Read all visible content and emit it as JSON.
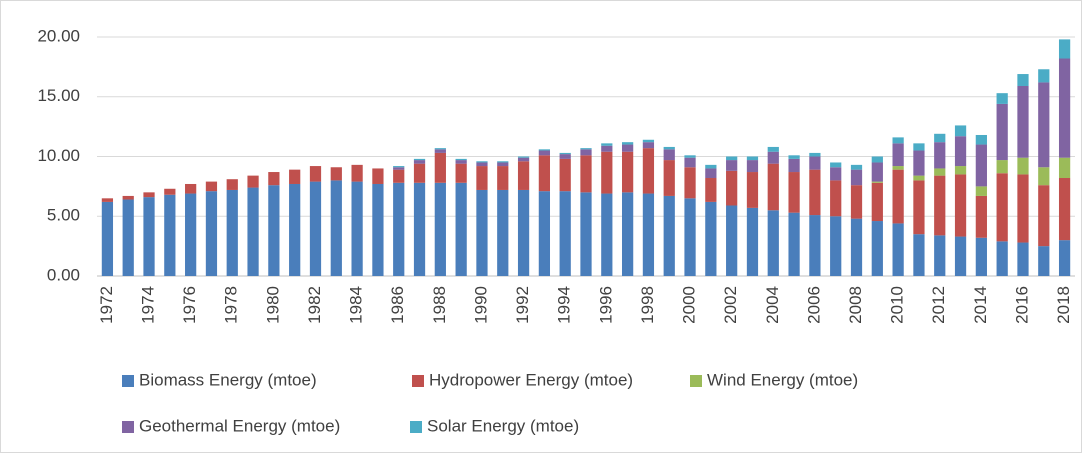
{
  "chart_data": {
    "type": "stacked-bar",
    "categories": [
      "1972",
      null,
      "1974",
      null,
      "1976",
      null,
      "1978",
      null,
      "1980",
      null,
      "1982",
      null,
      "1984",
      null,
      "1986",
      null,
      "1988",
      null,
      "1990",
      null,
      "1992",
      null,
      "1994",
      null,
      "1996",
      null,
      "1998",
      null,
      "2000",
      null,
      "2002",
      null,
      "2004",
      null,
      "2006",
      null,
      "2008",
      null,
      "2010",
      null,
      "2012",
      null,
      "2014",
      null,
      "2016",
      null,
      "2018"
    ],
    "series": [
      {
        "name": "Biomass Energy (mtoe)",
        "color": "#4a7ebb",
        "values": [
          6.2,
          6.4,
          6.6,
          6.8,
          6.9,
          7.1,
          7.2,
          7.4,
          7.6,
          7.7,
          7.9,
          8.0,
          7.9,
          7.7,
          7.8,
          7.8,
          7.8,
          7.8,
          7.2,
          7.2,
          7.2,
          7.1,
          7.1,
          7.0,
          6.9,
          7.0,
          6.9,
          6.7,
          6.5,
          6.2,
          5.9,
          5.7,
          5.5,
          5.3,
          5.1,
          5.0,
          4.8,
          4.6,
          4.4,
          3.5,
          3.4,
          3.3,
          3.2,
          2.9,
          2.8,
          2.5,
          3.0
        ]
      },
      {
        "name": "Hydropower Energy (mtoe)",
        "color": "#c0504d",
        "values": [
          0.3,
          0.3,
          0.4,
          0.5,
          0.8,
          0.8,
          0.9,
          1.0,
          1.1,
          1.2,
          1.3,
          1.1,
          1.4,
          1.3,
          1.1,
          1.6,
          2.5,
          1.6,
          2.0,
          2.0,
          2.4,
          3.0,
          2.7,
          3.1,
          3.5,
          3.4,
          3.8,
          3.0,
          2.6,
          2.0,
          2.9,
          3.0,
          3.9,
          3.4,
          3.8,
          3.0,
          2.8,
          3.2,
          4.5,
          4.5,
          5.0,
          5.2,
          3.5,
          5.7,
          5.7,
          5.1,
          5.2
        ]
      },
      {
        "name": "Wind Energy (mtoe)",
        "color": "#9bbb59",
        "values": [
          0,
          0,
          0,
          0,
          0,
          0,
          0,
          0,
          0,
          0,
          0,
          0,
          0,
          0,
          0,
          0,
          0,
          0,
          0,
          0,
          0,
          0,
          0,
          0,
          0,
          0,
          0,
          0,
          0,
          0,
          0,
          0,
          0,
          0,
          0,
          0,
          0,
          0.1,
          0.3,
          0.4,
          0.6,
          0.7,
          0.8,
          1.1,
          1.4,
          1.5,
          1.7
        ]
      },
      {
        "name": "Geothermal Energy (mtoe)",
        "color": "#8064a2",
        "values": [
          0,
          0,
          0,
          0,
          0,
          0,
          0,
          0,
          0,
          0,
          0,
          0,
          0,
          0,
          0.2,
          0.3,
          0.3,
          0.3,
          0.3,
          0.3,
          0.3,
          0.4,
          0.4,
          0.5,
          0.5,
          0.6,
          0.5,
          0.9,
          0.8,
          0.8,
          0.9,
          1.0,
          1.0,
          1.1,
          1.1,
          1.1,
          1.3,
          1.6,
          1.9,
          2.1,
          2.2,
          2.5,
          3.5,
          4.7,
          6.0,
          7.1,
          8.3
        ]
      },
      {
        "name": "Solar Energy (mtoe)",
        "color": "#4bacc6",
        "values": [
          0,
          0,
          0,
          0,
          0,
          0,
          0,
          0,
          0,
          0,
          0,
          0,
          0,
          0,
          0.1,
          0.1,
          0.1,
          0.1,
          0.1,
          0.1,
          0.1,
          0.1,
          0.1,
          0.1,
          0.2,
          0.2,
          0.2,
          0.2,
          0.2,
          0.3,
          0.3,
          0.3,
          0.4,
          0.3,
          0.3,
          0.4,
          0.4,
          0.5,
          0.5,
          0.6,
          0.7,
          0.9,
          0.8,
          0.9,
          1.0,
          1.1,
          1.6
        ]
      }
    ],
    "ylim": [
      0,
      20
    ],
    "yticks": [
      {
        "value": 0,
        "label": "0.00"
      },
      {
        "value": 5,
        "label": "5.00"
      },
      {
        "value": 10,
        "label": "10.00"
      },
      {
        "value": 15,
        "label": "15.00"
      },
      {
        "value": 20,
        "label": "20.00"
      }
    ],
    "grid": true
  }
}
